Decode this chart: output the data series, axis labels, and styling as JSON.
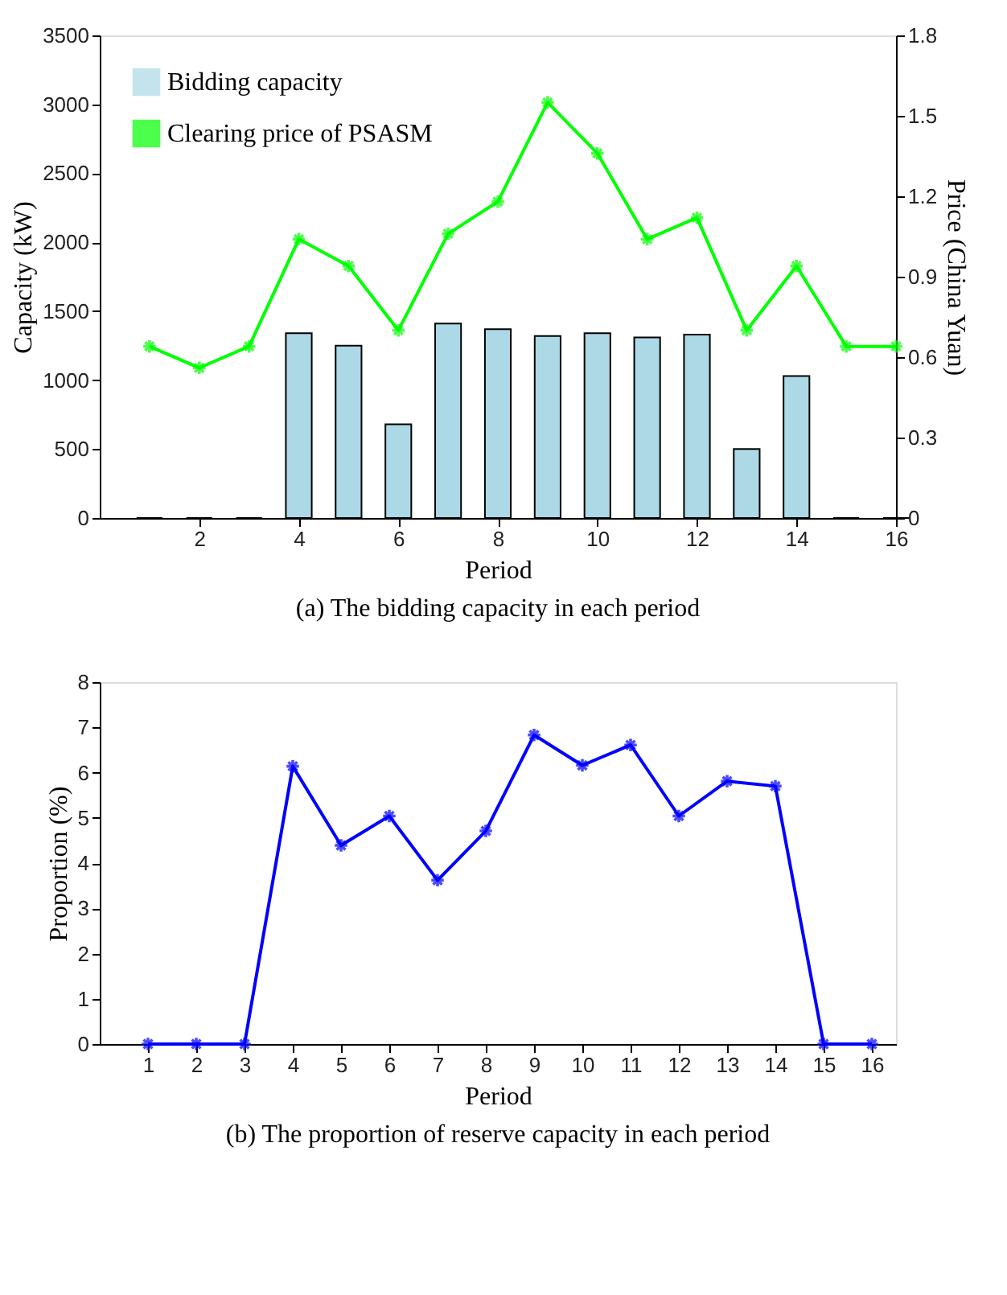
{
  "chart_data": [
    {
      "type": "bar",
      "title": "(a) The bidding capacity in each period",
      "xlabel": "Period",
      "ylabel": "Capacity (kW)",
      "y2label": "Price (China Yuan)",
      "x": [
        1,
        2,
        3,
        4,
        5,
        6,
        7,
        8,
        9,
        10,
        11,
        12,
        13,
        14,
        15,
        16
      ],
      "series": [
        {
          "name": "Bidding capacity",
          "type": "bar",
          "color": "#add8e6",
          "values": [
            0,
            0,
            0,
            1340,
            1250,
            680,
            1410,
            1370,
            1320,
            1340,
            1310,
            1330,
            500,
            1030,
            0,
            0
          ]
        },
        {
          "name": "Clearing price of PSASM",
          "type": "line",
          "axis": "y2",
          "color": "#00ff00",
          "marker": "cross",
          "values": [
            0.64,
            0.56,
            0.64,
            1.04,
            0.94,
            0.7,
            1.06,
            1.18,
            1.55,
            1.36,
            1.04,
            1.12,
            0.7,
            0.94,
            0.64,
            0.64
          ]
        }
      ],
      "xlim": [
        0,
        16
      ],
      "xticks": [
        2,
        4,
        6,
        8,
        10,
        12,
        14,
        16
      ],
      "ylim": [
        0,
        3500
      ],
      "yticks": [
        0,
        500,
        1000,
        1500,
        2000,
        2500,
        3000,
        3500
      ],
      "y2lim": [
        0,
        1.8
      ],
      "y2ticks": [
        0,
        0.3,
        0.6,
        0.9,
        1.2,
        1.5,
        1.8
      ],
      "legend": "top left",
      "grid": false
    },
    {
      "type": "line",
      "title": "(b) The proportion of reserve capacity in each period",
      "xlabel": "Period",
      "ylabel": "Proportion (%)",
      "x": [
        1,
        2,
        3,
        4,
        5,
        6,
        7,
        8,
        9,
        10,
        11,
        12,
        13,
        14,
        15,
        16
      ],
      "series": [
        {
          "color": "#0000ff",
          "marker": "cross",
          "values": [
            0,
            0,
            0,
            6.14,
            4.39,
            5.04,
            3.62,
            4.71,
            6.83,
            6.16,
            6.61,
            5.04,
            5.81,
            5.7,
            0,
            0
          ]
        }
      ],
      "xlim": [
        0,
        16.5
      ],
      "xticks": [
        1,
        2,
        3,
        4,
        5,
        6,
        7,
        8,
        9,
        10,
        11,
        12,
        13,
        14,
        15,
        16
      ],
      "ylim": [
        0,
        8
      ],
      "yticks": [
        0,
        1,
        2,
        3,
        4,
        5,
        6,
        7,
        8
      ],
      "legend": false,
      "grid": false
    }
  ]
}
